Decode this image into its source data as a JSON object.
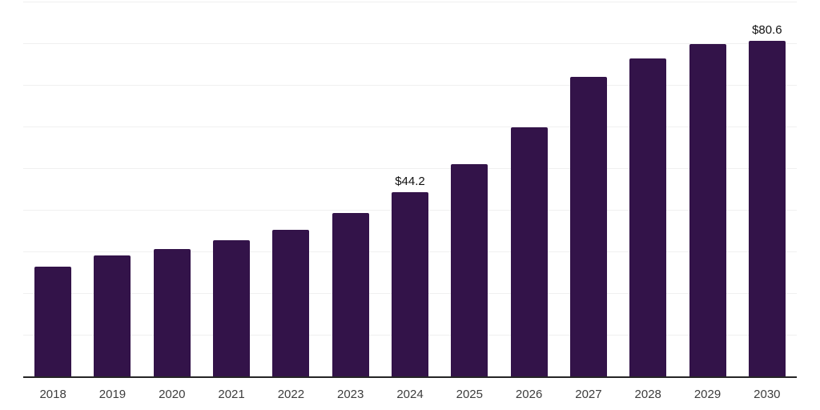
{
  "chart_data": {
    "type": "bar",
    "categories": [
      "2018",
      "2019",
      "2020",
      "2021",
      "2022",
      "2023",
      "2024",
      "2025",
      "2026",
      "2027",
      "2028",
      "2029",
      "2030"
    ],
    "values": [
      26.4,
      29.1,
      30.5,
      32.6,
      35.2,
      39.3,
      44.2,
      50.9,
      59.8,
      72.0,
      76.4,
      79.8,
      80.6
    ],
    "data_labels": [
      {
        "category": "2024",
        "text": "$44.2"
      },
      {
        "category": "2030",
        "text": "$80.6"
      }
    ],
    "title": "",
    "xlabel": "",
    "ylabel": "",
    "ylim": [
      0,
      90
    ],
    "grid_step": 10,
    "grid": "horizontal-light",
    "legend": "none",
    "bar_color": "#331349",
    "axis_line_color": "#262626",
    "gridline_color": "#f0f0f0",
    "value_label_color": "#111111",
    "tick_label_color": "#3d3d3d",
    "background_color": "#ffffff"
  }
}
